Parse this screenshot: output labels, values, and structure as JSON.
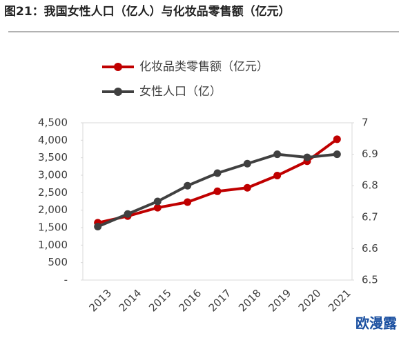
{
  "chart_data": {
    "type": "line",
    "title": "图21：我国女性人口（亿人）与化妆品零售额（亿元）",
    "categories": [
      "2013",
      "2014",
      "2015",
      "2016",
      "2017",
      "2018",
      "2019",
      "2020",
      "2021"
    ],
    "series": [
      {
        "name": "化妆品类零售额（亿元）",
        "color": "#c00000",
        "values": [
          1640,
          1830,
          2070,
          2230,
          2540,
          2640,
          2990,
          3400,
          4030
        ]
      },
      {
        "name": "女性人口（亿）",
        "color": "#404040",
        "axis": "y2",
        "values": [
          6.67,
          6.71,
          6.75,
          6.8,
          6.84,
          6.87,
          6.9,
          6.89,
          6.9
        ]
      }
    ],
    "ylim": [
      0,
      4500
    ],
    "yticks": [
      {
        "value": 0,
        "label": "-"
      },
      500,
      {
        "value": 1000,
        "label": "1,000"
      },
      {
        "value": 1500,
        "label": "1,500"
      },
      {
        "value": 2000,
        "label": "2,000"
      },
      {
        "value": 2500,
        "label": "2,500"
      },
      {
        "value": 3000,
        "label": "3,000"
      },
      {
        "value": 3500,
        "label": "3,500"
      },
      {
        "value": 4000,
        "label": "4,000"
      },
      {
        "value": 4500,
        "label": "4,500"
      }
    ],
    "y2lim": [
      6.5,
      7
    ],
    "y2ticks": [
      6.5,
      6.6,
      6.7,
      6.8,
      6.9,
      7
    ],
    "grid": false
  },
  "watermark": "欧漫露"
}
